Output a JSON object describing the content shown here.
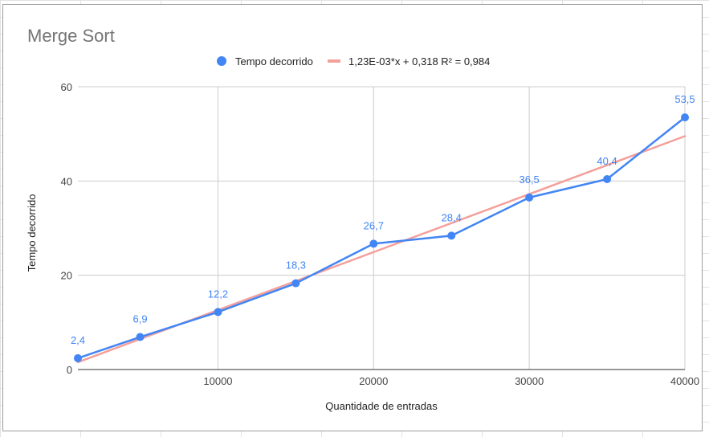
{
  "chart_data": {
    "type": "line",
    "title": "Merge Sort",
    "xlabel": "Quantidade de entradas",
    "ylabel": "Tempo decorrido",
    "xlim": [
      1000,
      40000
    ],
    "ylim": [
      0,
      60
    ],
    "x_ticks": [
      10000,
      20000,
      30000,
      40000
    ],
    "x_tick_labels": [
      "10000",
      "20000",
      "30000",
      "40000"
    ],
    "y_ticks": [
      0,
      20,
      40,
      60
    ],
    "y_tick_labels": [
      "0",
      "20",
      "40",
      "60"
    ],
    "grid": true,
    "legend_position": "top",
    "series": [
      {
        "name": "Tempo decorrido",
        "color": "#4285f4",
        "x": [
          1000,
          5000,
          10000,
          15000,
          20000,
          25000,
          30000,
          35000,
          40000
        ],
        "y": [
          2.4,
          6.9,
          12.2,
          18.3,
          26.7,
          28.4,
          36.5,
          40.4,
          53.5
        ],
        "labels": [
          "2,4",
          "6,9",
          "12,2",
          "18,3",
          "26,7",
          "28,4",
          "36,5",
          "40,4",
          "53,5"
        ]
      }
    ],
    "trendline": {
      "name": "1,23E-03*x + 0,318 R² = 0,984",
      "color": "#f4a09b",
      "slope": 0.00123,
      "intercept": 0.318
    }
  }
}
